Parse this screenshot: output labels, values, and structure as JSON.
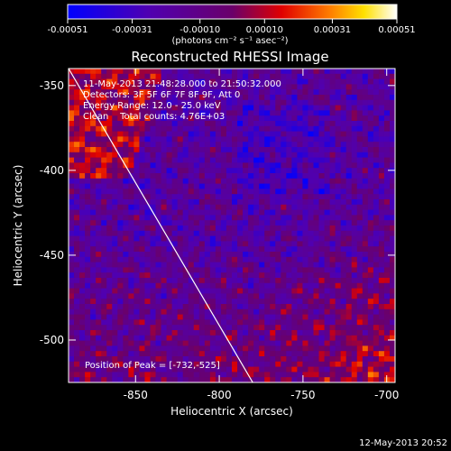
{
  "chart_data": {
    "type": "heatmap",
    "title": "Reconstructed RHESSI Image",
    "xlabel": "Heliocentric X (arcsec)",
    "ylabel": "Heliocentric Y (arcsec)",
    "xlim": [
      -890,
      -695
    ],
    "ylim": [
      -525,
      -340
    ],
    "x_ticks": [
      -850,
      -800,
      -750,
      -700
    ],
    "y_ticks": [
      -350,
      -400,
      -450,
      -500
    ],
    "x_tick_labels": [
      "-850",
      "-800",
      "-750",
      "-700"
    ],
    "y_tick_labels": [
      "-350",
      "-400",
      "-450",
      "-500"
    ],
    "colorbar": {
      "min": -0.00051,
      "max": 0.00051,
      "ticks": [
        -0.00051,
        -0.00031,
        -0.0001,
        0.0001,
        0.00031,
        0.00051
      ],
      "tick_labels": [
        "-0.00051",
        "-0.00031",
        "-0.00010",
        "0.00010",
        "0.00031",
        "0.00051"
      ],
      "units_label": "(photons cm⁻² s⁻¹ asec⁻²)",
      "colors": [
        "#0000ff",
        "#6000a0",
        "#ff0000",
        "#ffcc00",
        "#ffffff"
      ]
    },
    "annotations": [
      "11-May-2013 21:48:28.000 to 21:50:32.000",
      "Detectors: 3F 5F 6F 7F 8F 9F, Att 0",
      "Energy Range: 12.0 - 25.0 keV",
      "Clean    Total counts: 4.76E+03"
    ],
    "peak_label": "Position of Peak = [-732,-525]",
    "limb_line": {
      "x": [
        -890,
        -780
      ],
      "y": [
        -340,
        -525
      ]
    },
    "timestamp": "12-May-2013 20:52",
    "grid": false
  }
}
